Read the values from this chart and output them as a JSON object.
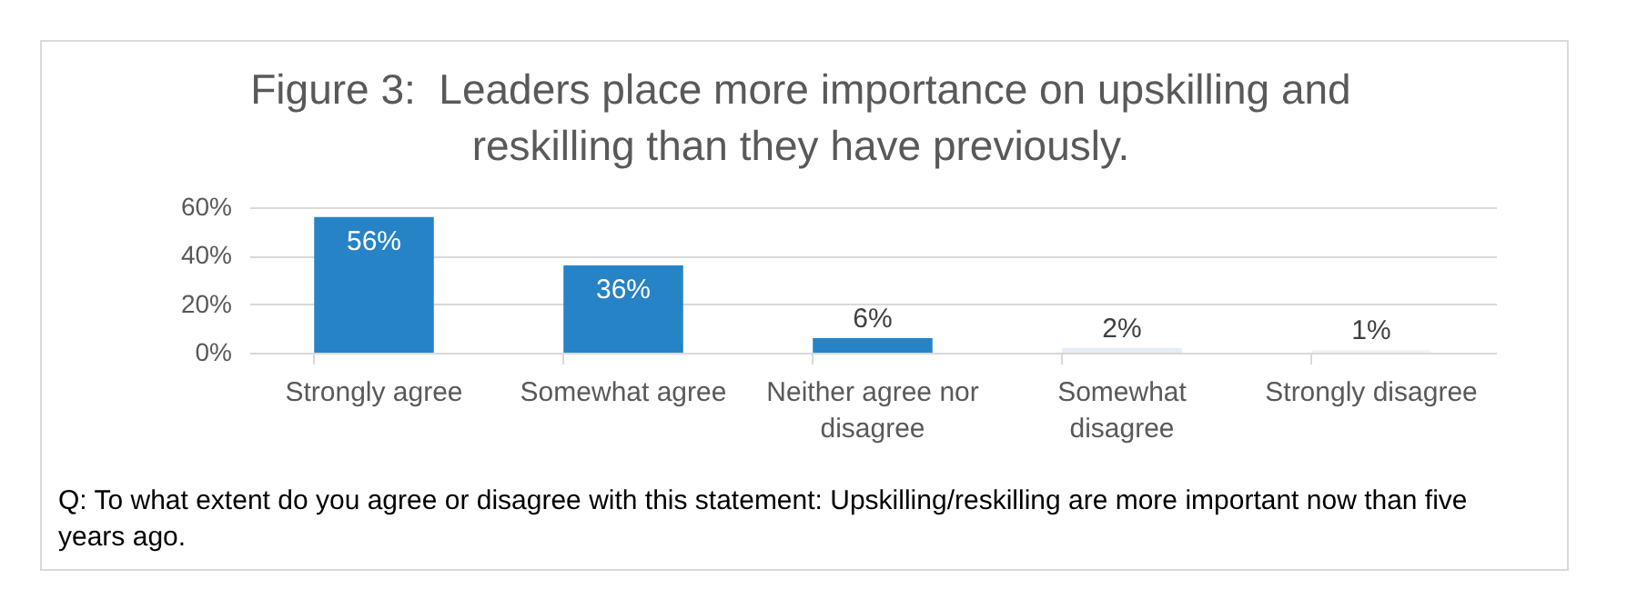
{
  "chart_data": {
    "type": "bar",
    "title": "Figure 3:  Leaders place more importance on upskilling and reskilling than they have previously.",
    "categories": [
      "Strongly agree",
      "Somewhat agree",
      "Neither agree nor disagree",
      "Somewhat disagree",
      "Strongly disagree"
    ],
    "values": [
      56,
      36,
      6,
      2,
      1
    ],
    "colors": [
      "#2683c6",
      "#2683c6",
      "#2683c6",
      "#e6edf4",
      "#eef3f8"
    ],
    "ylim": [
      0,
      60
    ],
    "yticks": [
      {
        "value": 0,
        "label": "0%"
      },
      {
        "value": 20,
        "label": "20%"
      },
      {
        "value": 40,
        "label": "40%"
      },
      {
        "value": 60,
        "label": "60%"
      }
    ],
    "grid": "y",
    "value_labels": [
      "56%",
      "36%",
      "6%",
      "2%",
      "1%"
    ],
    "annotations": [
      "Q: To what extent do you agree or disagree with this statement: Upskilling/reskilling are more important now than five years ago."
    ]
  }
}
